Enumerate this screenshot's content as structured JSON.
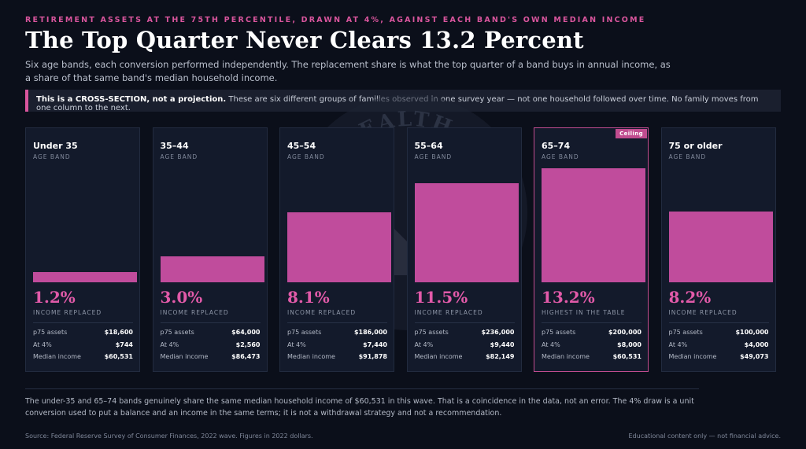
{
  "kicker": "RETIREMENT ASSETS AT THE 75TH PERCENTILE, DRAWN AT 4%, AGAINST EACH BAND'S OWN MEDIAN INCOME",
  "title": "The Top Quarter Never Clears 13.2 Percent",
  "subtitle": "Six age bands, each conversion performed independently. The replacement share is what the top quarter of a band buys in annual income, as a share of that same band's median household income.",
  "callout": {
    "lead": "This is a CROSS-SECTION, not a projection.",
    "rest": " These are six different groups of families observed in one survey year — not one household followed over time. No family moves from one column to the next."
  },
  "watermark_text": "STEPS TO THE WEALTH · ONE AT A TIME",
  "colors": {
    "accent": "#d9559d",
    "bar": "#c04c9c",
    "background": "#0b0f1a",
    "card": "#131a2b"
  },
  "chart_data": {
    "type": "bar",
    "categories": [
      "Under 35",
      "35–44",
      "45–54",
      "55–64",
      "65–74",
      "75 or older"
    ],
    "values": [
      1.2,
      3.0,
      8.1,
      11.5,
      13.2,
      8.2
    ],
    "ylim": [
      0,
      15.5
    ],
    "category_caption": "AGE BAND",
    "value_caption": "INCOME REPLACED",
    "highlight_caption": "HIGHEST IN THE TABLE",
    "highlight_badge": "Ceiling",
    "highlight_index": 4,
    "value_labels": [
      "1.2%",
      "3.0%",
      "8.1%",
      "11.5%",
      "13.2%",
      "8.2%"
    ],
    "row_labels": [
      "p75 assets",
      "At 4%",
      "Median income"
    ],
    "p75_assets": [
      "$18,600",
      "$64,000",
      "$186,000",
      "$236,000",
      "$200,000",
      "$100,000"
    ],
    "at_4pct": [
      "$744",
      "$2,560",
      "$7,440",
      "$9,440",
      "$8,000",
      "$4,000"
    ],
    "median_income": [
      "$60,531",
      "$86,473",
      "$91,878",
      "$82,149",
      "$60,531",
      "$49,073"
    ]
  },
  "footnote": "The under-35 and 65–74 bands genuinely share the same median household income of $60,531 in this wave. That is a coincidence in the data, not an error. The 4% draw is a unit conversion used to put a balance and an income in the same terms; it is not a withdrawal strategy and not a recommendation.",
  "source": "Source: Federal Reserve Survey of Consumer Finances, 2022 wave. Figures in 2022 dollars.",
  "disclaimer": "Educational content only — not financial advice."
}
